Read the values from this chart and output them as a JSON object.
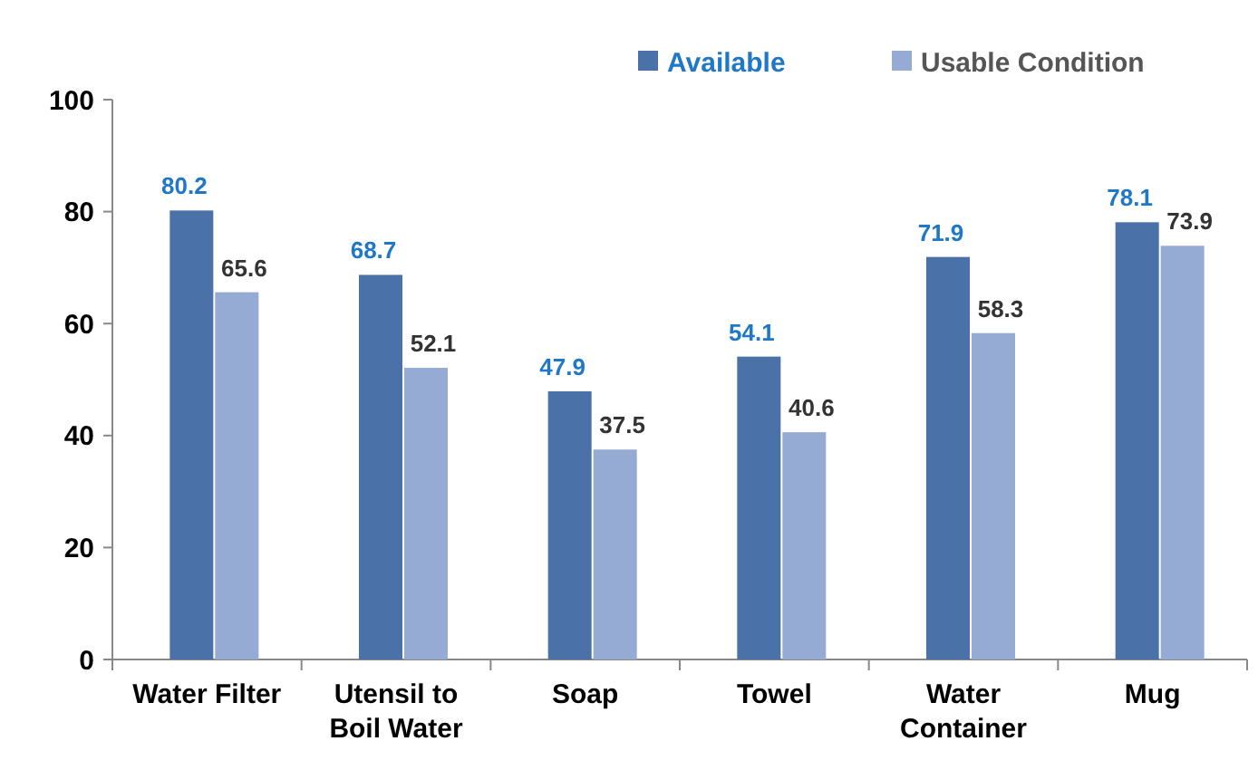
{
  "chart_data": {
    "type": "bar",
    "categories": [
      "Water Filter",
      "Utensil to Boil Water",
      "Soap",
      "Towel",
      "Water Container",
      "Mug"
    ],
    "series": [
      {
        "name": "Available",
        "color": "#4a72a8",
        "values": [
          80.2,
          68.7,
          47.9,
          54.1,
          71.9,
          78.1
        ]
      },
      {
        "name": "Usable Condition",
        "color": "#96abd4",
        "values": [
          65.6,
          52.1,
          37.5,
          40.6,
          58.3,
          73.9
        ]
      }
    ],
    "ylim": [
      0,
      100
    ],
    "yticks": [
      0,
      20,
      40,
      60,
      80,
      100
    ],
    "grid": false,
    "legend": "top right",
    "data_labels": true
  }
}
